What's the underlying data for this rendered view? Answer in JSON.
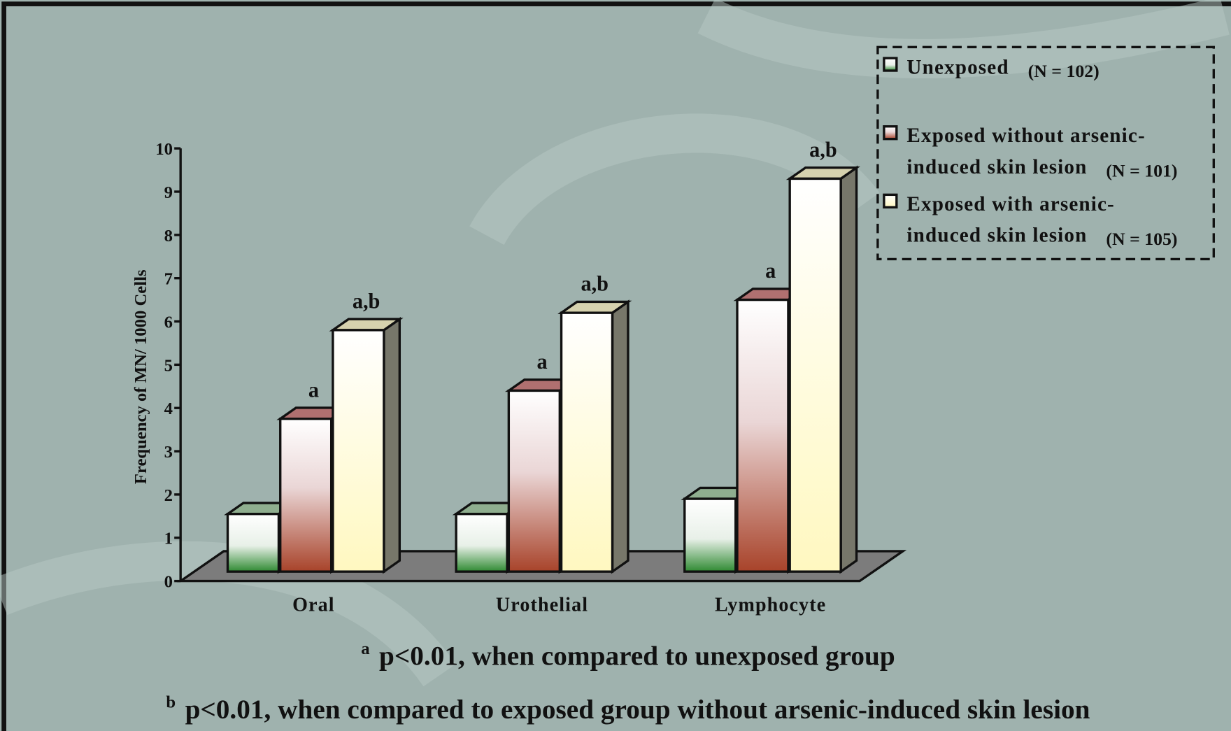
{
  "chart_data": {
    "type": "bar3d",
    "y_label": "Frequency of MN/ 1000 Cells",
    "categories": [
      "Oral",
      "Urothelial",
      "Lymphocyte"
    ],
    "series": [
      {
        "name": [
          "Unexposed"
        ],
        "n": "(N = 102)",
        "color": "#2f8a32",
        "top": "#8fae8f",
        "values": [
          1.55,
          1.55,
          1.9
        ],
        "labels": [
          null,
          null,
          null
        ]
      },
      {
        "name": [
          "Exposed without arsenic-",
          "induced skin lesion"
        ],
        "n": "(N = 101)",
        "color": "#a8432a",
        "top": "#b07070",
        "values": [
          3.75,
          4.4,
          6.5
        ],
        "labels": [
          "a",
          "a",
          "a"
        ]
      },
      {
        "name": [
          "Exposed with arsenic-",
          "induced skin lesion"
        ],
        "n": "(N = 105)",
        "color": "#fff8c0",
        "top": "#d6d2ae",
        "values": [
          5.8,
          6.2,
          9.3
        ],
        "labels": [
          "a,b",
          "a,b",
          "a,b"
        ]
      }
    ],
    "ylim": [
      0,
      10
    ],
    "yticks": [
      0,
      1,
      2,
      3,
      4,
      5,
      6,
      7,
      8,
      9,
      10
    ],
    "footnotes": [
      {
        "mark": "a",
        "text": "p<0.01, when compared to unexposed group"
      },
      {
        "mark": "b",
        "text": "p<0.01, when compared to exposed group without arsenic-induced skin lesion"
      }
    ]
  }
}
